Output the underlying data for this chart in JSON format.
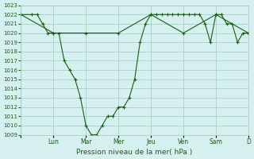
{
  "xlabel": "Pression niveau de la mer( hPa )",
  "ylabel": "",
  "background_color": "#d5f0ee",
  "grid_color": "#a0c8c0",
  "line_color": "#1a5c1a",
  "ylim": [
    1009,
    1023
  ],
  "yticks": [
    1009,
    1010,
    1011,
    1012,
    1013,
    1014,
    1015,
    1016,
    1017,
    1018,
    1019,
    1020,
    1021,
    1022,
    1023
  ],
  "days": [
    "",
    "Lun",
    "Mar",
    "Mer",
    "Jeu",
    "Ven",
    "Sam",
    "D"
  ],
  "day_positions": [
    0,
    6,
    12,
    18,
    24,
    30,
    36,
    42
  ],
  "line1_x": [
    0,
    2,
    3,
    4,
    5,
    6,
    7,
    8,
    9,
    10,
    11,
    12,
    13,
    14,
    15,
    16,
    17,
    18,
    19,
    20,
    21,
    22,
    23,
    24,
    25,
    26,
    27,
    28,
    29,
    30,
    31,
    32,
    33,
    34,
    35,
    36,
    37,
    38,
    39,
    40,
    41,
    42
  ],
  "line1_y": [
    1022,
    1022,
    1022,
    1021,
    1020,
    1020,
    1020,
    1017,
    1016,
    1015,
    1013,
    1010,
    1009,
    1009,
    1010,
    1011,
    1011,
    1012,
    1012,
    1013,
    1015,
    1019,
    1021,
    1022,
    1022,
    1022,
    1022,
    1022,
    1022,
    1022,
    1022,
    1022,
    1022,
    1021,
    1019,
    1022,
    1022,
    1021,
    1021,
    1019,
    1020,
    1020
  ],
  "line2_x": [
    0,
    6,
    12,
    18,
    24,
    30,
    36,
    42
  ],
  "line2_y": [
    1022,
    1020,
    1020,
    1020,
    1022,
    1020,
    1022,
    1020
  ],
  "marker": "+"
}
